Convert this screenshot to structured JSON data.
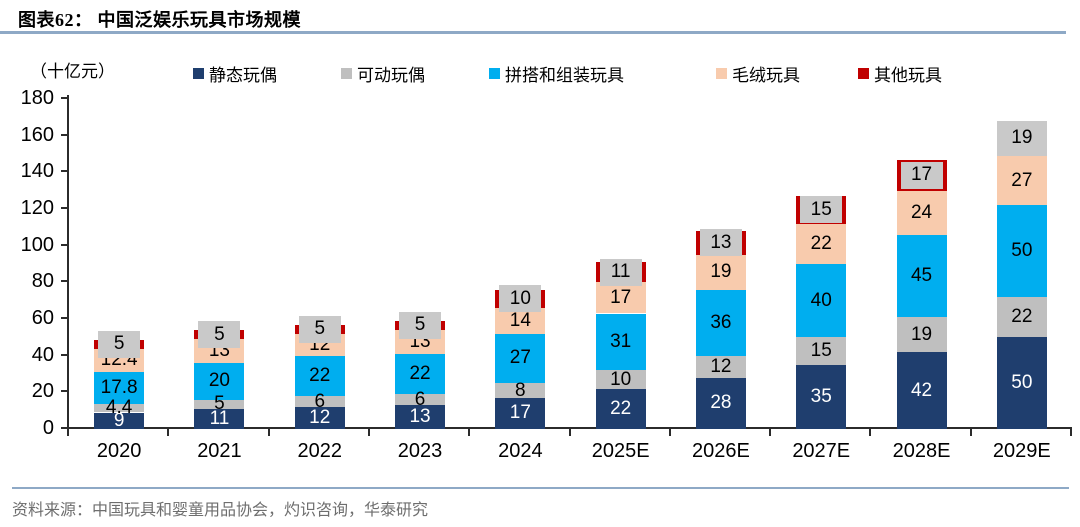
{
  "header": {
    "title": "图表62： 中国泛娱乐玩具市场规模"
  },
  "chart": {
    "unit_label": "（十亿元）"
  },
  "footer": {
    "source": "资料来源：中国玩具和婴童用品协会，灼识咨询，华泰研究"
  },
  "colors": {
    "title_rule": "#8EA9C6",
    "source_rule": "#8EA9C6",
    "axis": "#2b2b2b",
    "other_label_box": "#C9C9C9"
  },
  "chart_data": {
    "type": "bar",
    "stacked": true,
    "title": "中国泛娱乐玩具市场规模",
    "unit": "十亿元",
    "categories": [
      "2020",
      "2021",
      "2022",
      "2023",
      "2024",
      "2025E",
      "2026E",
      "2027E",
      "2028E",
      "2029E"
    ],
    "series": [
      {
        "name": "静态玩偶",
        "color": "#1F3E6E",
        "label_color": "#FFFFFF",
        "values": [
          9,
          11,
          12,
          13,
          17,
          22,
          28,
          35,
          42,
          50
        ]
      },
      {
        "name": "可动玩偶",
        "color": "#BFBFBF",
        "label_color": "#000000",
        "values": [
          4.4,
          5,
          6,
          6,
          8,
          10,
          12,
          15,
          19,
          22
        ]
      },
      {
        "name": "拼搭和组装玩具",
        "color": "#00AEEF",
        "label_color": "#000000",
        "values": [
          17.8,
          20,
          22,
          22,
          27,
          31,
          36,
          40,
          45,
          50
        ]
      },
      {
        "name": "毛绒玩具",
        "color": "#F8CBAD",
        "label_color": "#000000",
        "values": [
          12.4,
          13,
          12,
          13,
          14,
          17,
          19,
          22,
          24,
          27
        ]
      },
      {
        "name": "其他玩具",
        "color": "#C00000",
        "label_color": "#000000",
        "values": [
          5,
          5,
          5,
          5,
          10,
          11,
          13,
          15,
          17,
          19
        ]
      }
    ],
    "totals": [
      48.6,
      54,
      57,
      59,
      76,
      91,
      108,
      127,
      147,
      168
    ],
    "ylim": [
      0,
      180
    ],
    "ytick_step": 20,
    "yticks": [
      0,
      20,
      40,
      60,
      80,
      100,
      120,
      140,
      160,
      180
    ],
    "legend_position": "top",
    "grid": false
  }
}
